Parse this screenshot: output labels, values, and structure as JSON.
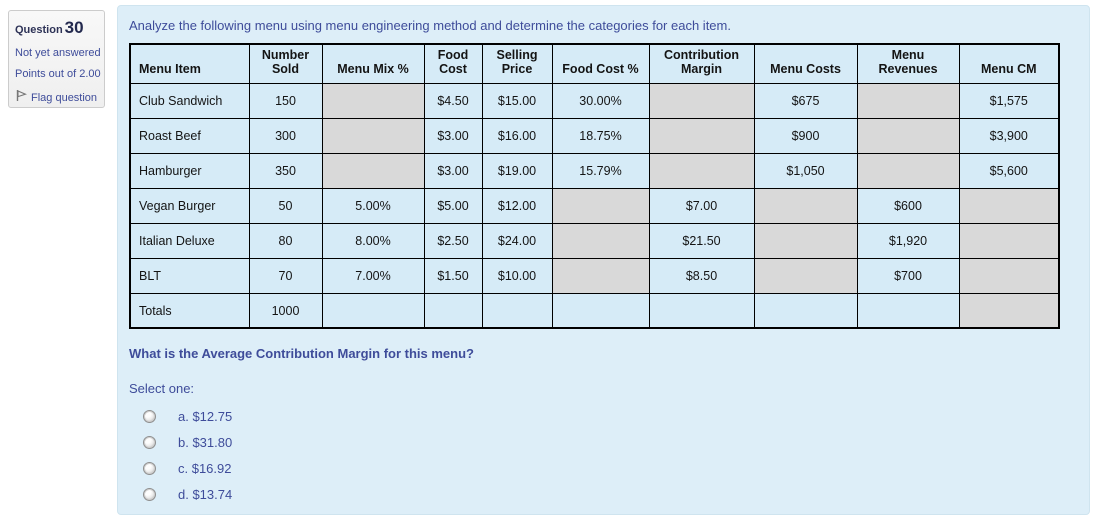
{
  "colors": {
    "navy_text": "#3e4c9a",
    "panel_bg": "#ddeef8",
    "cell_blue": "#d6ebf7",
    "shaded_gray": "#d9d9d9",
    "table_border": "#000000"
  },
  "sidebar": {
    "question_label": "Question",
    "question_number": "30",
    "status": "Not yet answered",
    "points": "Points out of 2.00",
    "flag_icon": "flag-icon",
    "flag_label": "Flag question"
  },
  "question": {
    "intro": "Analyze the following menu using menu engineering method and determine the categories for each item.",
    "prompt": "What is the Average Contribution Margin for this menu?",
    "select_label": "Select one:",
    "options": [
      {
        "letter": "a.",
        "value": "$12.75"
      },
      {
        "letter": "b.",
        "value": "$31.80"
      },
      {
        "letter": "c.",
        "value": "$16.92"
      },
      {
        "letter": "d.",
        "value": "$13.74"
      }
    ]
  },
  "table": {
    "columns": [
      "Menu Item",
      "Number\nSold",
      "Menu Mix %",
      "Food\nCost",
      "Selling\nPrice",
      "Food Cost %",
      "Contribution\nMargin",
      "Menu Costs",
      "Menu\nRevenues",
      "Menu CM"
    ],
    "rows": [
      {
        "cells": [
          {
            "text": "Club Sandwich",
            "shaded": false
          },
          {
            "text": "150",
            "shaded": false
          },
          {
            "text": "",
            "shaded": true
          },
          {
            "text": "$4.50",
            "shaded": false
          },
          {
            "text": "$15.00",
            "shaded": false
          },
          {
            "text": "30.00%",
            "shaded": false
          },
          {
            "text": "",
            "shaded": true
          },
          {
            "text": "$675",
            "shaded": false
          },
          {
            "text": "",
            "shaded": true
          },
          {
            "text": "$1,575",
            "shaded": false
          }
        ]
      },
      {
        "cells": [
          {
            "text": "Roast Beef",
            "shaded": false
          },
          {
            "text": "300",
            "shaded": false
          },
          {
            "text": "",
            "shaded": true
          },
          {
            "text": "$3.00",
            "shaded": false
          },
          {
            "text": "$16.00",
            "shaded": false
          },
          {
            "text": "18.75%",
            "shaded": false
          },
          {
            "text": "",
            "shaded": true
          },
          {
            "text": "$900",
            "shaded": false
          },
          {
            "text": "",
            "shaded": true
          },
          {
            "text": "$3,900",
            "shaded": false
          }
        ]
      },
      {
        "cells": [
          {
            "text": "Hamburger",
            "shaded": false
          },
          {
            "text": "350",
            "shaded": false
          },
          {
            "text": "",
            "shaded": true
          },
          {
            "text": "$3.00",
            "shaded": false
          },
          {
            "text": "$19.00",
            "shaded": false
          },
          {
            "text": "15.79%",
            "shaded": false
          },
          {
            "text": "",
            "shaded": true
          },
          {
            "text": "$1,050",
            "shaded": false
          },
          {
            "text": "",
            "shaded": true
          },
          {
            "text": "$5,600",
            "shaded": false
          }
        ]
      },
      {
        "cells": [
          {
            "text": "Vegan Burger",
            "shaded": false
          },
          {
            "text": "50",
            "shaded": false
          },
          {
            "text": "5.00%",
            "shaded": false
          },
          {
            "text": "$5.00",
            "shaded": false
          },
          {
            "text": "$12.00",
            "shaded": false
          },
          {
            "text": "",
            "shaded": true
          },
          {
            "text": "$7.00",
            "shaded": false
          },
          {
            "text": "",
            "shaded": true
          },
          {
            "text": "$600",
            "shaded": false
          },
          {
            "text": "",
            "shaded": true
          }
        ]
      },
      {
        "cells": [
          {
            "text": "Italian Deluxe",
            "shaded": false
          },
          {
            "text": "80",
            "shaded": false
          },
          {
            "text": "8.00%",
            "shaded": false
          },
          {
            "text": "$2.50",
            "shaded": false
          },
          {
            "text": "$24.00",
            "shaded": false
          },
          {
            "text": "",
            "shaded": true
          },
          {
            "text": "$21.50",
            "shaded": false
          },
          {
            "text": "",
            "shaded": true
          },
          {
            "text": "$1,920",
            "shaded": false
          },
          {
            "text": "",
            "shaded": true
          }
        ]
      },
      {
        "cells": [
          {
            "text": "BLT",
            "shaded": false
          },
          {
            "text": "70",
            "shaded": false
          },
          {
            "text": "7.00%",
            "shaded": false
          },
          {
            "text": "$1.50",
            "shaded": false
          },
          {
            "text": "$10.00",
            "shaded": false
          },
          {
            "text": "",
            "shaded": true
          },
          {
            "text": "$8.50",
            "shaded": false
          },
          {
            "text": "",
            "shaded": true
          },
          {
            "text": "$700",
            "shaded": false
          },
          {
            "text": "",
            "shaded": true
          }
        ]
      },
      {
        "cells": [
          {
            "text": "Totals",
            "shaded": false
          },
          {
            "text": "1000",
            "shaded": false
          },
          {
            "text": "",
            "shaded": false
          },
          {
            "text": "",
            "shaded": false
          },
          {
            "text": "",
            "shaded": false
          },
          {
            "text": "",
            "shaded": false
          },
          {
            "text": "",
            "shaded": false
          },
          {
            "text": "",
            "shaded": false
          },
          {
            "text": "",
            "shaded": false
          },
          {
            "text": "",
            "shaded": true
          }
        ]
      }
    ]
  }
}
